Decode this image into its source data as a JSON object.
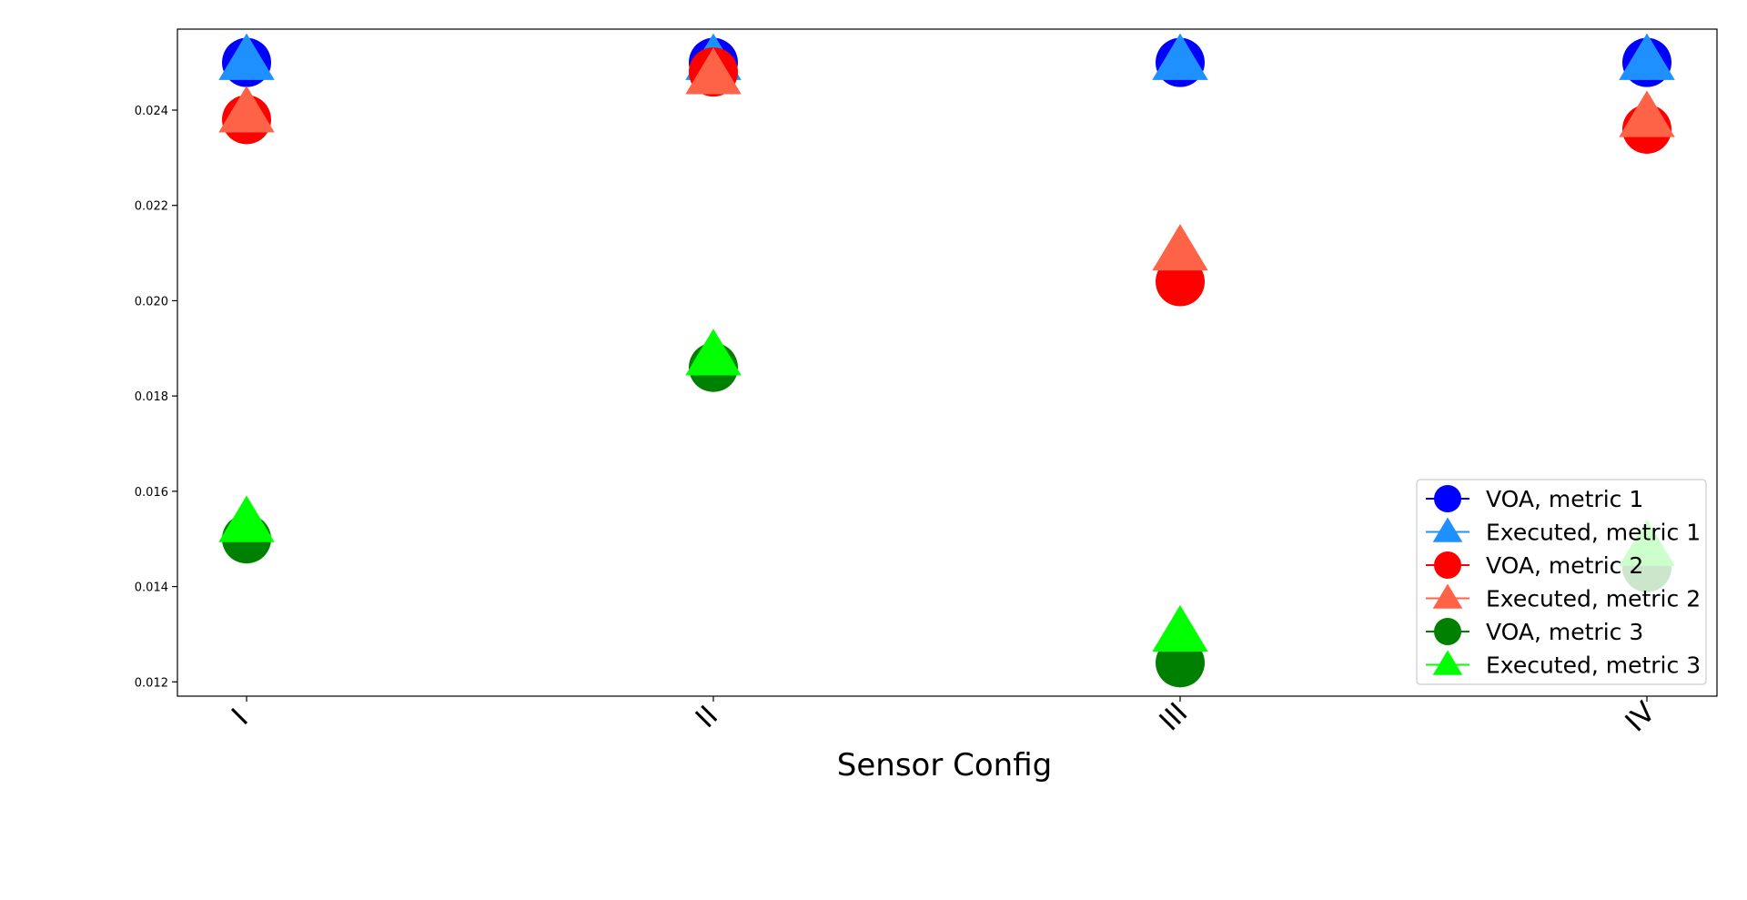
{
  "chart_data": {
    "type": "scatter",
    "title": "",
    "xlabel": "Sensor Config",
    "ylabel": "",
    "categories": [
      "I",
      "II",
      "III",
      "IV"
    ],
    "ylim": [
      0.0117,
      0.0257
    ],
    "yticks": [
      "0.012",
      "0.014",
      "0.016",
      "0.018",
      "0.020",
      "0.022",
      "0.024"
    ],
    "grid": false,
    "legend_position": "lower-right",
    "series": [
      {
        "name": "VOA, metric 1",
        "marker": "circle",
        "color": "#0000ff",
        "values": [
          0.025,
          0.025,
          0.025,
          0.025
        ]
      },
      {
        "name": "Executed, metric 1",
        "marker": "triangle",
        "color": "#1e90ff",
        "values": [
          0.025,
          0.025,
          0.025,
          0.025
        ]
      },
      {
        "name": "VOA, metric 2",
        "marker": "circle",
        "color": "#ff0000",
        "values": [
          0.0238,
          0.0248,
          0.0204,
          0.0236
        ]
      },
      {
        "name": "Executed, metric 2",
        "marker": "triangle",
        "color": "#ff6347",
        "values": [
          0.0239,
          0.0247,
          0.021,
          0.0238
        ]
      },
      {
        "name": "VOA, metric 3",
        "marker": "circle",
        "color": "#008000",
        "values": [
          0.015,
          0.0186,
          0.0124,
          0.0144
        ]
      },
      {
        "name": "Executed, metric 3",
        "marker": "triangle",
        "color": "#00ff00",
        "values": [
          0.0153,
          0.0188,
          0.013,
          0.0148
        ]
      }
    ]
  }
}
